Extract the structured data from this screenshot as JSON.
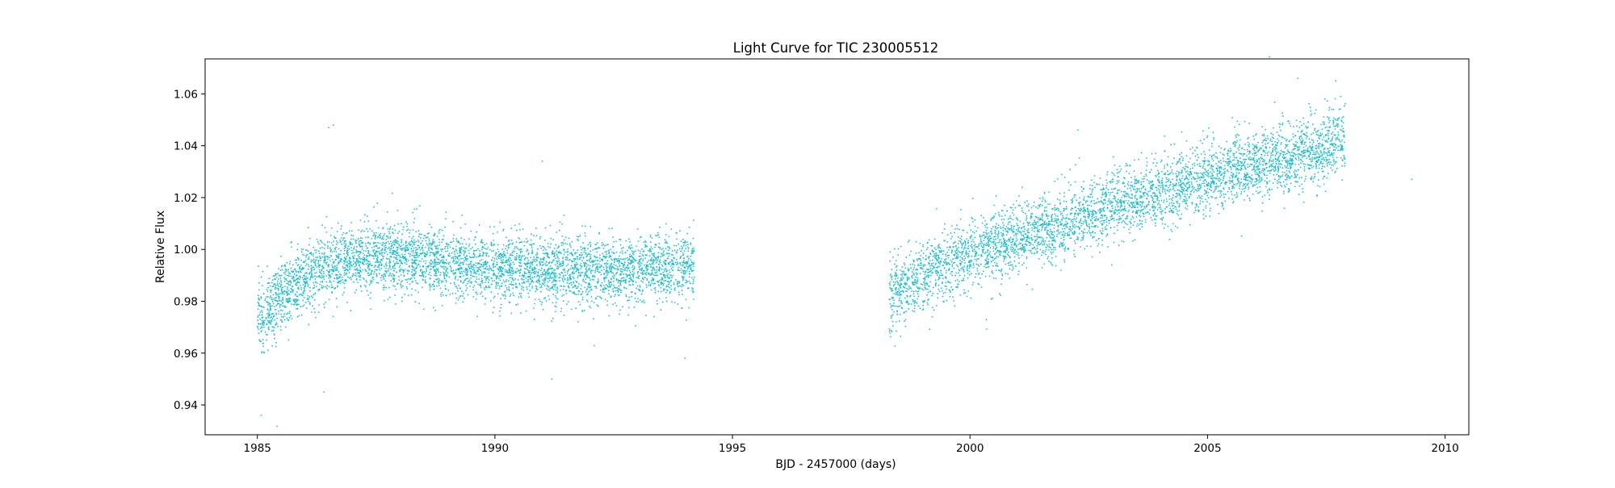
{
  "chart_data": {
    "type": "scatter",
    "title": "Light Curve for TIC 230005512",
    "xlabel": "BJD - 2457000 (days)",
    "ylabel": "Relative Flux",
    "xlim": [
      1983.9,
      2010.5
    ],
    "ylim": [
      0.9285,
      1.0735
    ],
    "xticks": [
      1985,
      1990,
      1995,
      2000,
      2005,
      2010
    ],
    "xtick_labels": [
      "1985",
      "1990",
      "1995",
      "2000",
      "2005",
      "2010"
    ],
    "yticks": [
      0.94,
      0.96,
      0.98,
      1.0,
      1.02,
      1.04,
      1.06
    ],
    "ytick_labels": [
      "0.94",
      "0.96",
      "0.98",
      "1.00",
      "1.02",
      "1.04",
      "1.06"
    ],
    "grid": false,
    "legend": "none",
    "marker_color": "#17becf",
    "segments": [
      {
        "x_range": [
          1985.0,
          1994.2
        ],
        "trend_x": [
          1985.0,
          1985.3,
          1985.6,
          1986.0,
          1986.5,
          1987.0,
          1987.5,
          1988.0,
          1989.0,
          1990.0,
          1991.0,
          1992.0,
          1993.0,
          1994.2
        ],
        "trend_y": [
          0.974,
          0.978,
          0.984,
          0.989,
          0.993,
          0.996,
          0.997,
          0.997,
          0.995,
          0.993,
          0.992,
          0.992,
          0.992,
          0.993
        ],
        "scatter_sigma": 0.0065,
        "n_points": 4600
      },
      {
        "x_range": [
          1998.3,
          2007.9
        ],
        "trend_x": [
          1998.3,
          1998.6,
          1999.0,
          2000.0,
          2001.0,
          2002.0,
          2003.0,
          2004.0,
          2005.0,
          2006.0,
          2007.0,
          2007.9
        ],
        "trend_y": [
          0.981,
          0.985,
          0.99,
          0.998,
          1.004,
          1.01,
          1.017,
          1.022,
          1.027,
          1.032,
          1.037,
          1.042
        ],
        "scatter_sigma": 0.0065,
        "n_points": 4300
      }
    ],
    "notable_points": [
      {
        "x": 1985.08,
        "y": 0.936
      },
      {
        "x": 1986.5,
        "y": 1.047
      },
      {
        "x": 1986.6,
        "y": 1.048
      },
      {
        "x": 1986.4,
        "y": 0.945
      },
      {
        "x": 1991.0,
        "y": 1.034
      },
      {
        "x": 1991.2,
        "y": 0.95
      },
      {
        "x": 1994.0,
        "y": 0.958
      },
      {
        "x": 2006.9,
        "y": 1.066
      },
      {
        "x": 2007.7,
        "y": 1.065
      },
      {
        "x": 2009.3,
        "y": 1.027
      }
    ]
  }
}
